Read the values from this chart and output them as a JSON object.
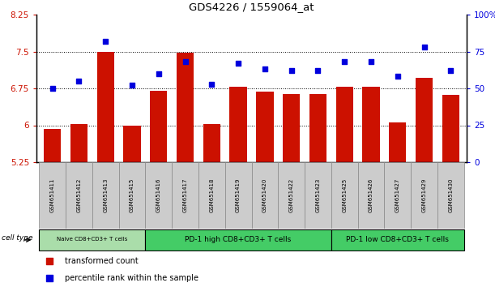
{
  "title": "GDS4226 / 1559064_at",
  "samples": [
    "GSM651411",
    "GSM651412",
    "GSM651413",
    "GSM651415",
    "GSM651416",
    "GSM651417",
    "GSM651418",
    "GSM651419",
    "GSM651420",
    "GSM651422",
    "GSM651423",
    "GSM651425",
    "GSM651426",
    "GSM651427",
    "GSM651429",
    "GSM651430"
  ],
  "bar_values": [
    5.92,
    6.03,
    7.5,
    6.0,
    6.7,
    7.47,
    6.03,
    6.78,
    6.68,
    6.63,
    6.63,
    6.78,
    6.78,
    6.06,
    6.97,
    6.62
  ],
  "dot_values": [
    50,
    55,
    82,
    52,
    60,
    68,
    53,
    67,
    63,
    62,
    62,
    68,
    68,
    58,
    78,
    62
  ],
  "ylim_left": [
    5.25,
    8.25
  ],
  "ylim_right": [
    0,
    100
  ],
  "yticks_left": [
    5.25,
    6.0,
    6.75,
    7.5,
    8.25
  ],
  "yticks_right": [
    0,
    25,
    50,
    75,
    100
  ],
  "ytick_labels_left": [
    "5.25",
    "6",
    "6.75",
    "7.5",
    "8.25"
  ],
  "ytick_labels_right": [
    "0",
    "25",
    "50",
    "75",
    "100%"
  ],
  "bar_color": "#cc1100",
  "dot_color": "#0000dd",
  "grid_color": "#000000",
  "cell_type_groups": [
    {
      "label": "Naive CD8+CD3+ T cells",
      "start": 0,
      "end": 4
    },
    {
      "label": "PD-1 high CD8+CD3+ T cells",
      "start": 4,
      "end": 11
    },
    {
      "label": "PD-1 low CD8+CD3+ T cells",
      "start": 11,
      "end": 16
    }
  ],
  "group_colors": [
    "#aaddaa",
    "#44cc66",
    "#44cc66"
  ],
  "legend_labels": [
    "transformed count",
    "percentile rank within the sample"
  ],
  "cell_type_label": "cell type",
  "xlabel_bg": "#cccccc"
}
